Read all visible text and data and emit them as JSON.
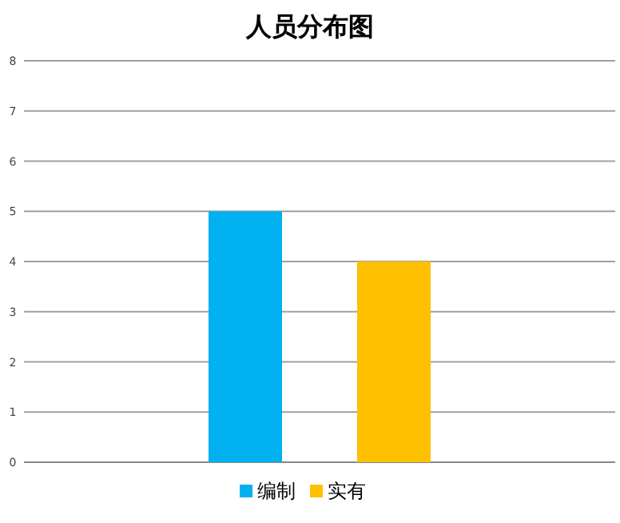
{
  "chart_data": {
    "type": "bar",
    "title": "人员分布图",
    "categories": [
      null
    ],
    "series": [
      {
        "name": "编制",
        "color": "#00b0f0",
        "values": [
          5
        ]
      },
      {
        "name": "实有",
        "color": "#ffc000",
        "values": [
          4
        ]
      }
    ],
    "ylim": [
      0,
      8
    ],
    "yticks": [
      0,
      1,
      2,
      3,
      4,
      5,
      6,
      7,
      8
    ],
    "grid": "y",
    "legend": "bottom"
  }
}
